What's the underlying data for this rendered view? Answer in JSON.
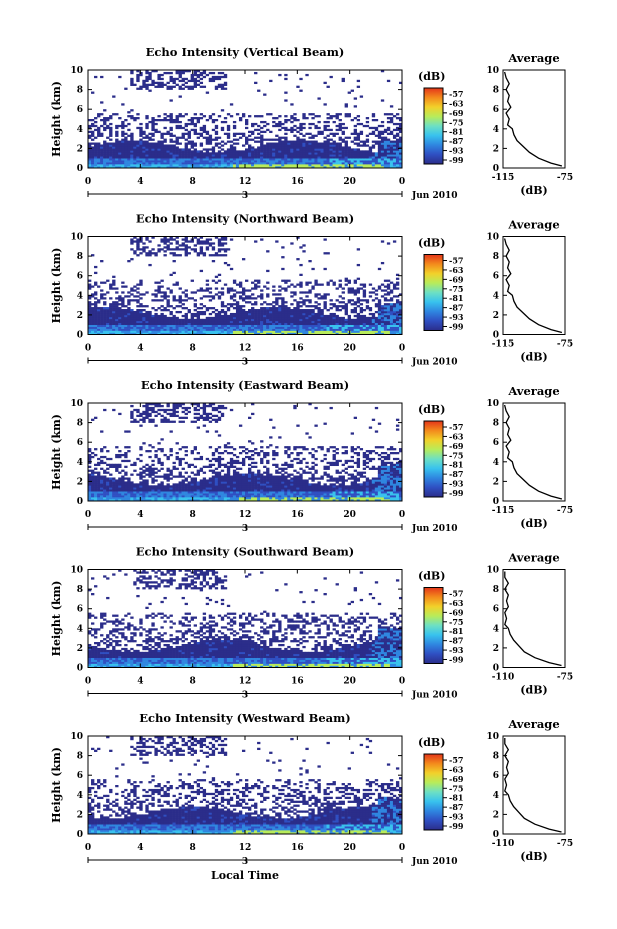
{
  "chart_data": {
    "type": "heatmap",
    "date_label": "Jun 2010",
    "xlabel": "Local Time",
    "ylabel": "Height (km)",
    "xticks": [
      "0",
      "4",
      "8",
      "12",
      "16",
      "20",
      "0"
    ],
    "xlim": [
      0,
      24
    ],
    "ylim": [
      0,
      10
    ],
    "yticks": [
      "0",
      "2",
      "4",
      "6",
      "8",
      "10"
    ],
    "date_marker": "3",
    "colorbar": {
      "unit": "(dB)",
      "ticks": [
        "-57",
        "-63",
        "-69",
        "-75",
        "-81",
        "-87",
        "-93",
        "-99"
      ],
      "colors": [
        "#2b2d8a",
        "#2f4fc2",
        "#2f86e0",
        "#38c2ee",
        "#6de0c4",
        "#b8ec5a",
        "#f2d12a",
        "#f38a1c",
        "#e4351a"
      ]
    },
    "panels": [
      {
        "title": "Echo Intensity (Vertical Beam)",
        "profile_title": "Average",
        "profile_xlabel": "(dB)",
        "profile_xticks": [
          "-115",
          "-75"
        ],
        "profile_xlim": [
          -115,
          -75
        ],
        "profile": [
          [
            -77,
            0.2
          ],
          [
            -84,
            0.5
          ],
          [
            -92,
            1.0
          ],
          [
            -98,
            1.6
          ],
          [
            -102,
            2.2
          ],
          [
            -106,
            2.8
          ],
          [
            -108,
            3.4
          ],
          [
            -109,
            4.0
          ],
          [
            -112,
            4.4
          ],
          [
            -111,
            5.0
          ],
          [
            -113,
            5.6
          ],
          [
            -110,
            6.2
          ],
          [
            -112,
            6.8
          ],
          [
            -111,
            7.4
          ],
          [
            -113,
            8.0
          ],
          [
            -111,
            8.6
          ],
          [
            -113,
            9.2
          ],
          [
            -114,
            9.8
          ]
        ]
      },
      {
        "title": "Echo Intensity (Northward Beam)",
        "profile_title": "Average",
        "profile_xlabel": "(dB)",
        "profile_xticks": [
          "-115",
          "-75"
        ],
        "profile_xlim": [
          -115,
          -75
        ],
        "profile": [
          [
            -77,
            0.2
          ],
          [
            -84,
            0.5
          ],
          [
            -92,
            1.0
          ],
          [
            -98,
            1.6
          ],
          [
            -102,
            2.2
          ],
          [
            -106,
            2.8
          ],
          [
            -108,
            3.4
          ],
          [
            -109,
            4.0
          ],
          [
            -112,
            4.4
          ],
          [
            -111,
            5.0
          ],
          [
            -113,
            5.6
          ],
          [
            -110,
            6.2
          ],
          [
            -112,
            6.8
          ],
          [
            -111,
            7.4
          ],
          [
            -113,
            8.0
          ],
          [
            -111,
            8.6
          ],
          [
            -113,
            9.2
          ],
          [
            -114,
            9.8
          ]
        ]
      },
      {
        "title": "Echo Intensity (Eastward Beam)",
        "profile_title": "Average",
        "profile_xlabel": "(dB)",
        "profile_xticks": [
          "-115",
          "-75"
        ],
        "profile_xlim": [
          -115,
          -75
        ],
        "profile": [
          [
            -77,
            0.2
          ],
          [
            -84,
            0.5
          ],
          [
            -92,
            1.0
          ],
          [
            -98,
            1.6
          ],
          [
            -102,
            2.2
          ],
          [
            -106,
            2.8
          ],
          [
            -108,
            3.4
          ],
          [
            -109,
            4.0
          ],
          [
            -112,
            4.4
          ],
          [
            -111,
            5.0
          ],
          [
            -113,
            5.6
          ],
          [
            -110,
            6.2
          ],
          [
            -112,
            6.8
          ],
          [
            -111,
            7.4
          ],
          [
            -113,
            8.0
          ],
          [
            -111,
            8.6
          ],
          [
            -113,
            9.2
          ],
          [
            -114,
            9.8
          ]
        ]
      },
      {
        "title": "Echo Intensity (Southward Beam)",
        "profile_title": "Average",
        "profile_xlabel": "(dB)",
        "profile_xticks": [
          "-110",
          "-75"
        ],
        "profile_xlim": [
          -110,
          -75
        ],
        "profile": [
          [
            -77,
            0.2
          ],
          [
            -84,
            0.5
          ],
          [
            -92,
            1.0
          ],
          [
            -98,
            1.6
          ],
          [
            -101,
            2.2
          ],
          [
            -104,
            2.8
          ],
          [
            -106,
            3.4
          ],
          [
            -107,
            4.0
          ],
          [
            -109,
            4.4
          ],
          [
            -108,
            5.0
          ],
          [
            -109,
            5.6
          ],
          [
            -107,
            6.2
          ],
          [
            -108,
            6.8
          ],
          [
            -107,
            7.4
          ],
          [
            -109,
            8.0
          ],
          [
            -107,
            8.6
          ],
          [
            -109,
            9.2
          ],
          [
            -109,
            9.8
          ]
        ]
      },
      {
        "title": "Echo Intensity (Westward Beam)",
        "profile_title": "Average",
        "profile_xlabel": "(dB)",
        "profile_xticks": [
          "-110",
          "-75"
        ],
        "profile_xlim": [
          -110,
          -75
        ],
        "profile": [
          [
            -77,
            0.2
          ],
          [
            -84,
            0.5
          ],
          [
            -92,
            1.0
          ],
          [
            -98,
            1.6
          ],
          [
            -101,
            2.2
          ],
          [
            -104,
            2.8
          ],
          [
            -106,
            3.4
          ],
          [
            -107,
            4.0
          ],
          [
            -109,
            4.4
          ],
          [
            -108,
            5.0
          ],
          [
            -109,
            5.6
          ],
          [
            -107,
            6.2
          ],
          [
            -108,
            6.8
          ],
          [
            -107,
            7.4
          ],
          [
            -109,
            8.0
          ],
          [
            -107,
            8.6
          ],
          [
            -109,
            9.2
          ],
          [
            -109,
            9.8
          ]
        ]
      }
    ]
  }
}
